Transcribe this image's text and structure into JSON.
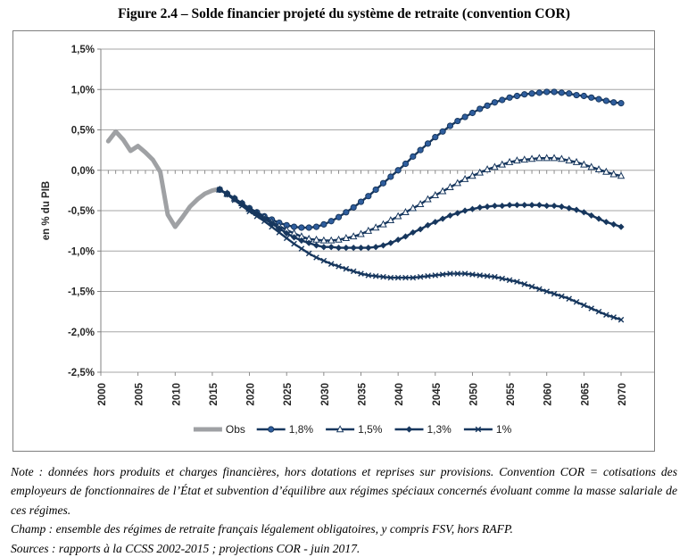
{
  "figure": {
    "title": "Figure 2.4 – Solde financier projeté du système de retraite (convention COR)",
    "note": "Note : données hors produits et charges financières, hors dotations et reprises sur provisions. Convention COR = cotisations des employeurs de fonctionnaires de l’État et subvention d’équilibre aux régimes spéciaux concernés évoluant comme la masse salariale de ces régimes.",
    "champ": "Champ : ensemble des régimes de retraite français légalement obligatoires, y compris FSV, hors RAFP.",
    "sources": "Sources : rapports à la CCSS 2002-2015 ; projections COR - juin 2017."
  },
  "chart_data": {
    "type": "line",
    "title": "",
    "xlabel": "",
    "ylabel": "en % du PIB",
    "ylim": [
      -2.5,
      1.5
    ],
    "xlim": [
      2000,
      2070
    ],
    "grid": true,
    "legend_position": "bottom",
    "colors": {
      "navy": "#17375E",
      "circle_fill": "#2F5E9E",
      "observed_gray": "#9FA1A4",
      "gridline": "#A6A6A6",
      "axis": "#808080",
      "label_text": "#262626"
    },
    "yticks": [
      {
        "value": 1.5,
        "label": "1,5%"
      },
      {
        "value": 1.0,
        "label": "1,0%"
      },
      {
        "value": 0.5,
        "label": "0,5%"
      },
      {
        "value": 0.0,
        "label": "0,0%"
      },
      {
        "value": -0.5,
        "label": "-0,5%"
      },
      {
        "value": -1.0,
        "label": "-1,0%"
      },
      {
        "value": -1.5,
        "label": "-1,5%"
      },
      {
        "value": -2.0,
        "label": "-2,0%"
      },
      {
        "value": -2.5,
        "label": "-2,5%"
      }
    ],
    "xticks": [
      {
        "value": 2000,
        "label": "2000"
      },
      {
        "value": 2005,
        "label": "2005"
      },
      {
        "value": 2010,
        "label": "2010"
      },
      {
        "value": 2015,
        "label": "2015"
      },
      {
        "value": 2020,
        "label": "2020"
      },
      {
        "value": 2025,
        "label": "2025"
      },
      {
        "value": 2030,
        "label": "2030"
      },
      {
        "value": 2035,
        "label": "2035"
      },
      {
        "value": 2040,
        "label": "2040"
      },
      {
        "value": 2045,
        "label": "2045"
      },
      {
        "value": 2050,
        "label": "2050"
      },
      {
        "value": 2055,
        "label": "2055"
      },
      {
        "value": 2060,
        "label": "2060"
      },
      {
        "value": 2065,
        "label": "2065"
      },
      {
        "value": 2070,
        "label": "2070"
      }
    ],
    "series": [
      {
        "name": "Obs",
        "marker": "none",
        "color": "#9FA1A4",
        "width": 5,
        "start_year": 2001,
        "values": [
          0.36,
          0.48,
          0.38,
          0.24,
          0.3,
          0.22,
          0.13,
          -0.02,
          -0.55,
          -0.7,
          -0.58,
          -0.45,
          -0.36,
          -0.29,
          -0.25,
          -0.23
        ]
      },
      {
        "name": "1,8%",
        "marker": "circle",
        "color": "#17375E",
        "marker_fill": "#2F5E9E",
        "width": 2.4,
        "start_year": 2016,
        "values": [
          -0.24,
          -0.29,
          -0.35,
          -0.41,
          -0.47,
          -0.52,
          -0.57,
          -0.61,
          -0.65,
          -0.68,
          -0.7,
          -0.71,
          -0.71,
          -0.7,
          -0.67,
          -0.63,
          -0.58,
          -0.52,
          -0.46,
          -0.39,
          -0.32,
          -0.24,
          -0.16,
          -0.08,
          0.0,
          0.08,
          0.17,
          0.25,
          0.33,
          0.41,
          0.48,
          0.55,
          0.61,
          0.66,
          0.71,
          0.76,
          0.8,
          0.84,
          0.87,
          0.9,
          0.92,
          0.94,
          0.95,
          0.96,
          0.97,
          0.97,
          0.96,
          0.95,
          0.93,
          0.92,
          0.9,
          0.88,
          0.86,
          0.84,
          0.83
        ]
      },
      {
        "name": "1,5%",
        "marker": "triangle-open",
        "color": "#17375E",
        "marker_fill": "#FFFFFF",
        "width": 2.4,
        "start_year": 2016,
        "values": [
          -0.24,
          -0.29,
          -0.35,
          -0.41,
          -0.48,
          -0.53,
          -0.58,
          -0.64,
          -0.69,
          -0.74,
          -0.78,
          -0.82,
          -0.85,
          -0.86,
          -0.87,
          -0.87,
          -0.86,
          -0.84,
          -0.82,
          -0.79,
          -0.75,
          -0.71,
          -0.67,
          -0.62,
          -0.57,
          -0.52,
          -0.47,
          -0.42,
          -0.36,
          -0.31,
          -0.26,
          -0.21,
          -0.16,
          -0.11,
          -0.07,
          -0.03,
          0.01,
          0.04,
          0.07,
          0.1,
          0.12,
          0.13,
          0.14,
          0.15,
          0.15,
          0.15,
          0.14,
          0.12,
          0.1,
          0.07,
          0.04,
          0.01,
          -0.02,
          -0.05,
          -0.07
        ]
      },
      {
        "name": "1,3%",
        "marker": "diamond",
        "color": "#17375E",
        "marker_fill": "#17375E",
        "width": 2.4,
        "start_year": 2016,
        "values": [
          -0.24,
          -0.3,
          -0.36,
          -0.42,
          -0.48,
          -0.54,
          -0.6,
          -0.66,
          -0.72,
          -0.78,
          -0.83,
          -0.87,
          -0.9,
          -0.93,
          -0.95,
          -0.95,
          -0.96,
          -0.96,
          -0.96,
          -0.96,
          -0.96,
          -0.95,
          -0.93,
          -0.9,
          -0.86,
          -0.82,
          -0.77,
          -0.73,
          -0.68,
          -0.64,
          -0.6,
          -0.56,
          -0.53,
          -0.5,
          -0.48,
          -0.46,
          -0.45,
          -0.44,
          -0.44,
          -0.43,
          -0.43,
          -0.43,
          -0.43,
          -0.43,
          -0.44,
          -0.44,
          -0.45,
          -0.47,
          -0.49,
          -0.52,
          -0.56,
          -0.6,
          -0.64,
          -0.67,
          -0.7
        ]
      },
      {
        "name": "1%",
        "marker": "x",
        "color": "#17375E",
        "marker_fill": "#17375E",
        "width": 2.4,
        "start_year": 2016,
        "values": [
          -0.24,
          -0.3,
          -0.37,
          -0.44,
          -0.51,
          -0.57,
          -0.63,
          -0.7,
          -0.77,
          -0.84,
          -0.91,
          -0.97,
          -1.03,
          -1.08,
          -1.12,
          -1.16,
          -1.19,
          -1.22,
          -1.25,
          -1.28,
          -1.3,
          -1.31,
          -1.32,
          -1.33,
          -1.33,
          -1.33,
          -1.33,
          -1.32,
          -1.31,
          -1.3,
          -1.29,
          -1.28,
          -1.28,
          -1.28,
          -1.29,
          -1.3,
          -1.31,
          -1.32,
          -1.34,
          -1.36,
          -1.38,
          -1.41,
          -1.44,
          -1.47,
          -1.5,
          -1.53,
          -1.56,
          -1.59,
          -1.63,
          -1.67,
          -1.71,
          -1.75,
          -1.79,
          -1.82,
          -1.85
        ]
      }
    ]
  }
}
